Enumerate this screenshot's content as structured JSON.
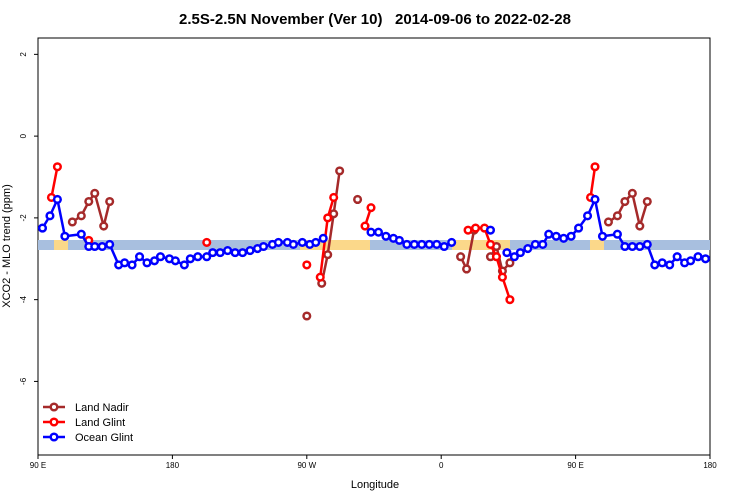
{
  "chart_data": {
    "type": "line",
    "title": "2.5S-2.5N November (Ver 10)   2014-09-06 to 2022-02-28",
    "x_label": "Longitude",
    "y_label": "XCO2 - MLO trend (ppm)",
    "xlim": [
      90,
      540
    ],
    "ylim": [
      -7.8,
      2.4
    ],
    "xticks": [
      {
        "value": 90,
        "label": "90 E"
      },
      180,
      {
        "value": 270,
        "label": "90 W"
      },
      {
        "value": 360,
        "label": "0"
      },
      {
        "value": 450,
        "label": "90 E"
      },
      {
        "value": 540,
        "label": "180"
      }
    ],
    "yticks": [
      -6,
      -4,
      -2,
      0,
      2
    ],
    "legend": "bottom-left",
    "series": [
      {
        "name": "Land Nadir",
        "color": "#a52a2a",
        "x": [
          113,
          119,
          124,
          128,
          134,
          138,
          null,
          270,
          null,
          280,
          284,
          288,
          292,
          null,
          304,
          null,
          373,
          377,
          382,
          null,
          393,
          397,
          401,
          406,
          null,
          472,
          478,
          483,
          488,
          493,
          498
        ],
        "values": [
          -2.1,
          -1.95,
          -1.6,
          -1.4,
          -2.2,
          -1.6,
          null,
          -4.4,
          null,
          -3.6,
          -2.9,
          -1.9,
          -0.85,
          null,
          -1.55,
          null,
          -2.95,
          -3.25,
          -2.3,
          null,
          -2.95,
          -2.7,
          -3.3,
          -3.1,
          null,
          -2.1,
          -1.95,
          -1.6,
          -1.4,
          -2.2,
          -1.6
        ]
      },
      {
        "name": "Land Glint",
        "color": "#ff0000",
        "x": [
          99,
          103,
          null,
          124,
          null,
          203,
          null,
          270,
          null,
          279,
          284,
          288,
          null,
          309,
          313,
          null,
          378,
          383,
          389,
          393,
          397,
          401,
          406,
          null,
          460,
          463
        ],
        "values": [
          -1.5,
          -0.75,
          null,
          -2.55,
          null,
          -2.6,
          null,
          -3.15,
          null,
          -3.45,
          -2.0,
          -1.5,
          null,
          -2.2,
          -1.75,
          null,
          -2.3,
          -2.25,
          -2.25,
          -2.65,
          -2.95,
          -3.45,
          -4.0,
          null,
          -1.5,
          -0.75
        ]
      },
      {
        "name": "Ocean Glint",
        "color": "#0000ff",
        "x": [
          93,
          98,
          103,
          108,
          119,
          124,
          128,
          133,
          138,
          144,
          148,
          153,
          158,
          163,
          168,
          172,
          178,
          182,
          188,
          192,
          197,
          203,
          207,
          212,
          217,
          222,
          227,
          232,
          237,
          241,
          247,
          251,
          257,
          261,
          267,
          272,
          276,
          281,
          null,
          313,
          318,
          323,
          328,
          332,
          337,
          342,
          347,
          352,
          357,
          362,
          367,
          null,
          393,
          null,
          404,
          409,
          413,
          418,
          423,
          428,
          432,
          437,
          442,
          447,
          452,
          458,
          463,
          468,
          478,
          483,
          488,
          493,
          498,
          503,
          508,
          513,
          518,
          523,
          527,
          532,
          537
        ],
        "values": [
          -2.25,
          -1.95,
          -1.55,
          -2.45,
          -2.4,
          -2.7,
          -2.7,
          -2.7,
          -2.65,
          -3.15,
          -3.1,
          -3.15,
          -2.95,
          -3.1,
          -3.05,
          -2.95,
          -3.0,
          -3.05,
          -3.15,
          -3.0,
          -2.95,
          -2.95,
          -2.85,
          -2.85,
          -2.8,
          -2.85,
          -2.85,
          -2.8,
          -2.75,
          -2.7,
          -2.65,
          -2.6,
          -2.6,
          -2.65,
          -2.6,
          -2.65,
          -2.6,
          -2.5,
          null,
          -2.35,
          -2.35,
          -2.45,
          -2.5,
          -2.55,
          -2.65,
          -2.65,
          -2.65,
          -2.65,
          -2.65,
          -2.7,
          -2.6,
          null,
          -2.3,
          null,
          -2.85,
          -2.95,
          -2.85,
          -2.75,
          -2.65,
          -2.65,
          -2.4,
          -2.45,
          -2.5,
          -2.45,
          -2.25,
          -1.95,
          -1.55,
          -2.45,
          -2.4,
          -2.7,
          -2.7,
          -2.7,
          -2.65,
          -3.15,
          -3.1,
          -3.15,
          -2.95,
          -3.1,
          -3.05,
          -2.95,
          -3.0
        ]
      }
    ]
  }
}
